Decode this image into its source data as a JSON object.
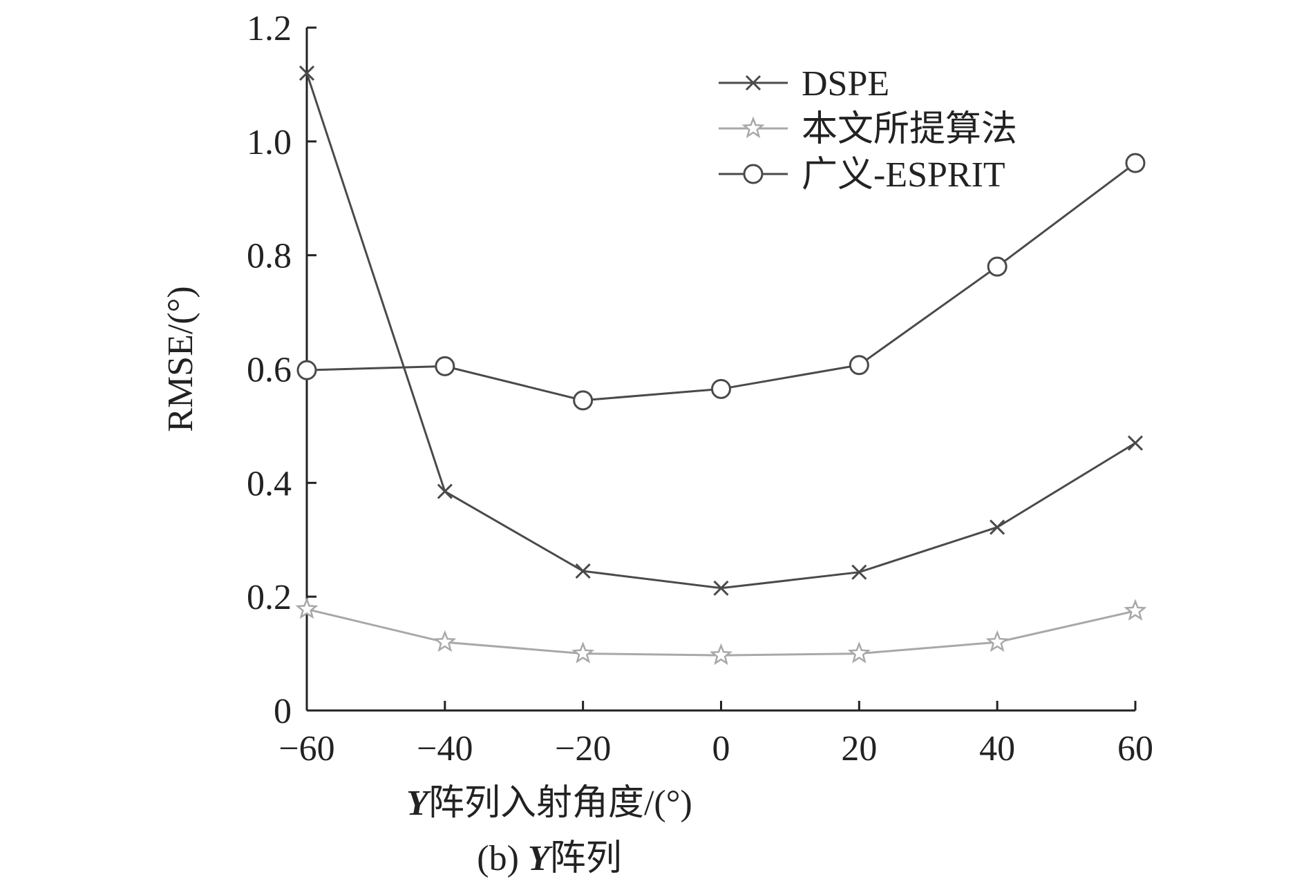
{
  "chart_data": {
    "type": "line",
    "x": [
      -60,
      -40,
      -20,
      0,
      20,
      40,
      60
    ],
    "xlim": [
      -60,
      60
    ],
    "ylim": [
      0,
      1.2
    ],
    "xticks": [
      "−60",
      "−40",
      "−20",
      "0",
      "20",
      "40",
      "60"
    ],
    "yticks": [
      "0",
      "0.2",
      "0.4",
      "0.6",
      "0.8",
      "1.0",
      "1.2"
    ],
    "xtick_values": [
      -60,
      -40,
      -20,
      0,
      20,
      40,
      60
    ],
    "ytick_values": [
      0,
      0.2,
      0.4,
      0.6,
      0.8,
      1.0,
      1.2
    ],
    "xlabel_var": "Y",
    "xlabel_rest": "阵列入射角度/(°)",
    "ylabel": "RMSE/(°)",
    "caption_prefix": "(b) ",
    "caption_var": "Y",
    "caption_rest": "阵列",
    "grid": false,
    "legend_position": "top-right",
    "series": [
      {
        "name": "DSPE",
        "marker": "x",
        "color": "#4a4a4a",
        "values": [
          1.12,
          0.385,
          0.245,
          0.215,
          0.243,
          0.322,
          0.47
        ]
      },
      {
        "name": "本文所提算法",
        "marker": "star",
        "color": "#a8a8a8",
        "values": [
          0.178,
          0.12,
          0.1,
          0.097,
          0.1,
          0.12,
          0.175
        ]
      },
      {
        "name": "广义-ESPRIT",
        "marker": "circle",
        "color": "#4a4a4a",
        "values": [
          0.598,
          0.605,
          0.545,
          0.565,
          0.607,
          0.78,
          0.962
        ]
      }
    ]
  }
}
